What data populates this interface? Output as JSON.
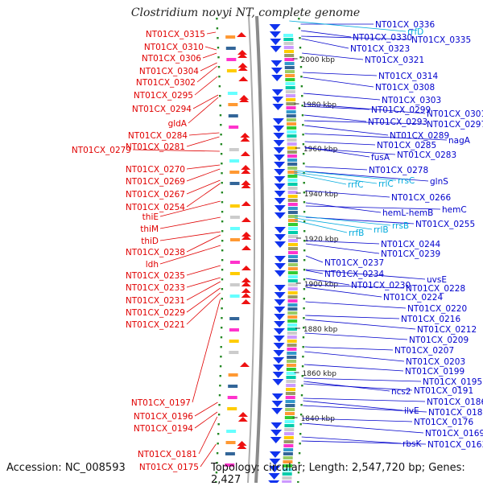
{
  "title": "Clostridium novyi NT, complete genome",
  "footer": {
    "accession": "Accession: NC_008593",
    "topology": "Topology: circular; Length: 2,547,720 bp; Genes: 2,427"
  },
  "colors": {
    "left_labels": "#e00000",
    "right_labels": "#0000cc",
    "rna_labels": "#00aadd",
    "backbone": "#777777",
    "dots": "#228822"
  },
  "kbp_ticks": [
    "2000 kbp",
    "1980 kbp",
    "1960 kbp",
    "1940 kbp",
    "1920 kbp",
    "1900 kbp",
    "1880 kbp",
    "1860 kbp",
    "1840 kbp"
  ],
  "left_labels": [
    "NT01CX_0315",
    "NT01CX_0310",
    "NT01CX_0306",
    "NT01CX_0304",
    "NT01CX_0302",
    "NT01CX_0295",
    "NT01CX_0294",
    "gldA",
    "NT01CX_0284",
    "NT01CX_0281",
    "NT01CX_0279",
    "NT01CX_0270",
    "NT01CX_0269",
    "NT01CX_0267",
    "NT01CX_0254",
    "thiE",
    "thiM",
    "thiD",
    "NT01CX_0238",
    "ldh",
    "NT01CX_0235",
    "NT01CX_0233",
    "NT01CX_0231",
    "NT01CX_0229",
    "NT01CX_0221",
    "NT01CX_0197",
    "NT01CX_0196",
    "NT01CX_0194",
    "NT01CX_0181",
    "NT01CX_0175"
  ],
  "right_labels": [
    "NT01CX_0336",
    "NT01CX_0330",
    "NT01CX_0335",
    "NT01CX_0323",
    "NT01CX_0321",
    "NT01CX_0314",
    "NT01CX_0308",
    "NT01CX_0303",
    "NT01CX_0299",
    "NT01CX_0301",
    "NT01CX_0293",
    "NT01CX_0297",
    "NT01CX_0289",
    "nagA",
    "NT01CX_0285",
    "fusA",
    "NT01CX_0283",
    "NT01CX_0278",
    "glnS",
    "NT01CX_0266",
    "hemC",
    "hemL-hemB",
    "NT01CX_0255",
    "NT01CX_0244",
    "NT01CX_0239",
    "NT01CX_0237",
    "NT01CX_0234",
    "uvsE",
    "NT01CX_0230",
    "NT01CX_0228",
    "NT01CX_0224",
    "NT01CX_0220",
    "NT01CX_0216",
    "NT01CX_0212",
    "NT01CX_0209",
    "NT01CX_0207",
    "NT01CX_0203",
    "NT01CX_0199",
    "NT01CX_0195",
    "ncs2",
    "NT01CX_0191",
    "NT01CX_0186",
    "ilvE",
    "NT01CX_0180",
    "NT01CX_0176",
    "NT01CX_0169",
    "rbsK",
    "NT01CX_0163"
  ],
  "rna_labels": [
    "rrfD",
    "rrsC",
    "rrlC",
    "rrfC",
    "rrsB",
    "rrlB",
    "rrfB"
  ]
}
